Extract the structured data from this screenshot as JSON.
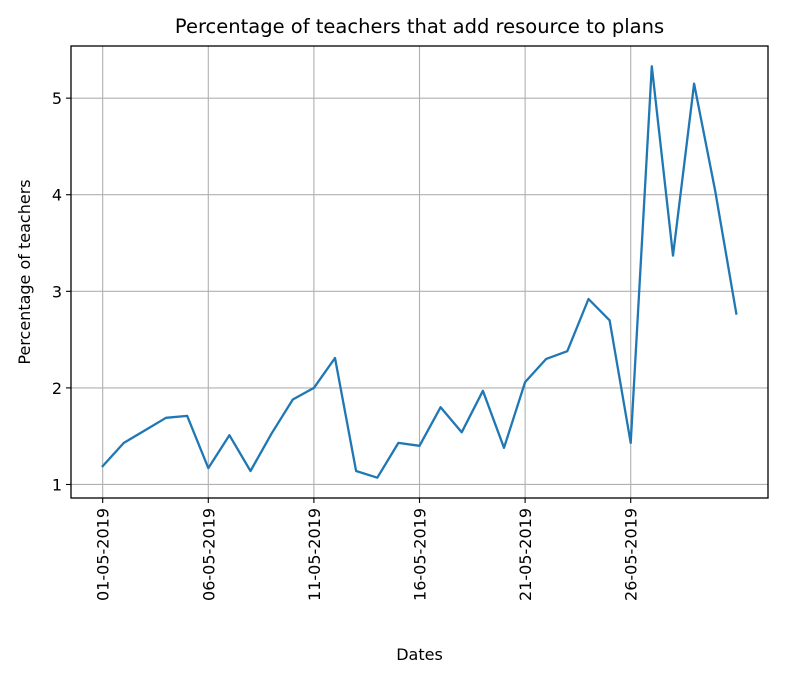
{
  "chart_data": {
    "type": "line",
    "title": "Percentage of teachers that add resource to plans",
    "xlabel": "Dates",
    "ylabel": "Percentage of teachers",
    "x_tick_labels": [
      "01-05-2019",
      "06-05-2019",
      "11-05-2019",
      "16-05-2019",
      "21-05-2019",
      "26-05-2019"
    ],
    "y_ticks": [
      1,
      2,
      3,
      4,
      5
    ],
    "ylim": [
      0.86,
      5.54
    ],
    "grid": true,
    "colors": {
      "line": "#1f77b4",
      "grid": "#b0b0b0",
      "axes": "#000000"
    },
    "series": [
      {
        "x": [
          "01-05-2019",
          "02-05-2019",
          "03-05-2019",
          "04-05-2019",
          "05-05-2019",
          "06-05-2019",
          "07-05-2019",
          "08-05-2019",
          "09-05-2019",
          "10-05-2019",
          "11-05-2019",
          "12-05-2019",
          "13-05-2019",
          "14-05-2019",
          "15-05-2019",
          "16-05-2019",
          "17-05-2019",
          "18-05-2019",
          "19-05-2019",
          "20-05-2019",
          "21-05-2019",
          "22-05-2019",
          "23-05-2019",
          "24-05-2019",
          "25-05-2019",
          "26-05-2019",
          "27-05-2019",
          "28-05-2019",
          "29-05-2019",
          "30-05-2019",
          "31-05-2019"
        ],
        "y": [
          1.19,
          1.43,
          1.56,
          1.69,
          1.71,
          1.17,
          1.51,
          1.14,
          1.53,
          1.88,
          2.0,
          2.31,
          1.14,
          1.07,
          1.43,
          1.4,
          1.8,
          1.54,
          1.97,
          1.38,
          2.06,
          2.3,
          2.38,
          2.92,
          2.7,
          1.43,
          5.33,
          3.37,
          5.15,
          4.04,
          2.77
        ]
      }
    ]
  }
}
